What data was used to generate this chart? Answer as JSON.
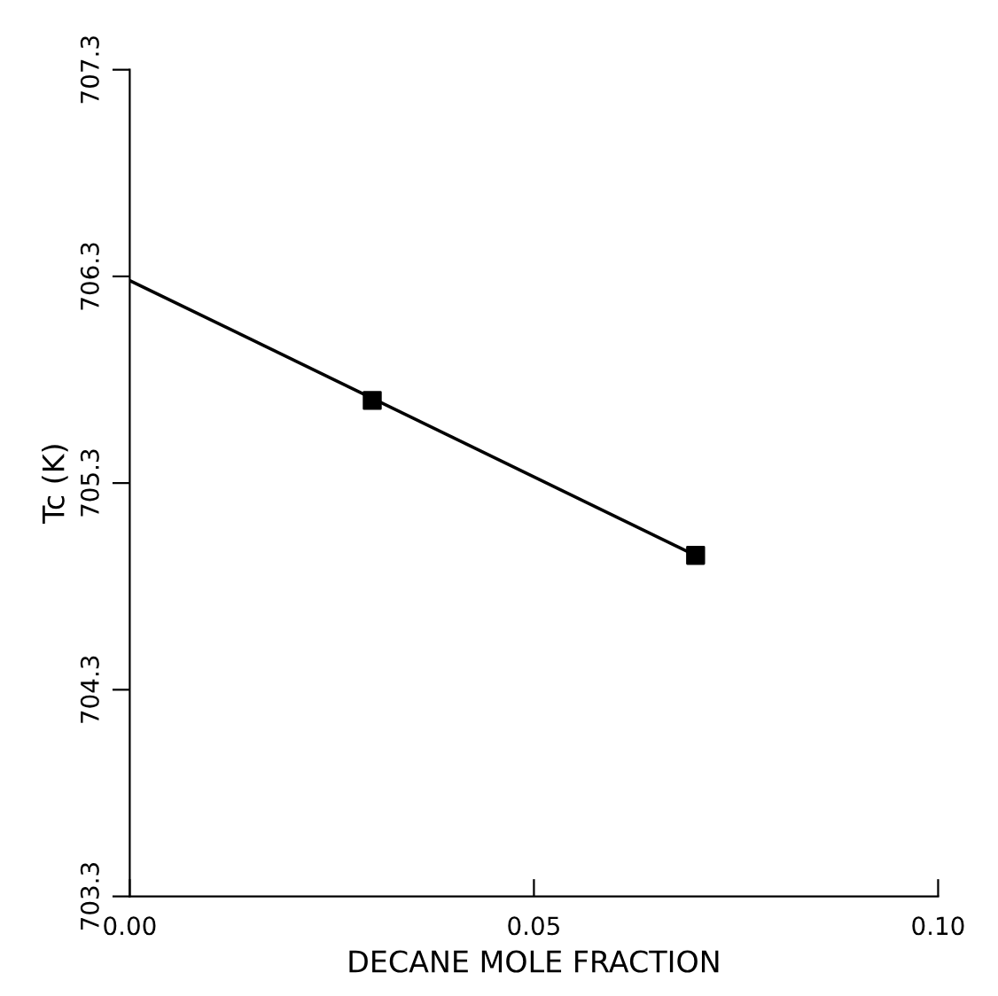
{
  "chart_data": {
    "type": "scatter",
    "xlabel": "DECANE MOLE FRACTION",
    "ylabel": "Tc (K)",
    "xlim": [
      0,
      0.1
    ],
    "ylim": [
      703.3,
      707.3
    ],
    "xticks": [
      {
        "value": 0,
        "label": "0.00"
      },
      0.05,
      {
        "value": 0.1,
        "label": "0.10"
      }
    ],
    "yticks": [
      703.3,
      704.3,
      705.3,
      706.3,
      707.3
    ],
    "grid": false,
    "legend": false,
    "series": [
      {
        "type": "line",
        "color": "#000000",
        "x": [
          0,
          0.07
        ],
        "values": [
          706.28,
          704.95
        ],
        "marker": "none"
      },
      {
        "color": "#000000",
        "x": [
          0.03,
          0.07
        ],
        "values": [
          705.7,
          704.95
        ],
        "marker": "square"
      }
    ]
  }
}
